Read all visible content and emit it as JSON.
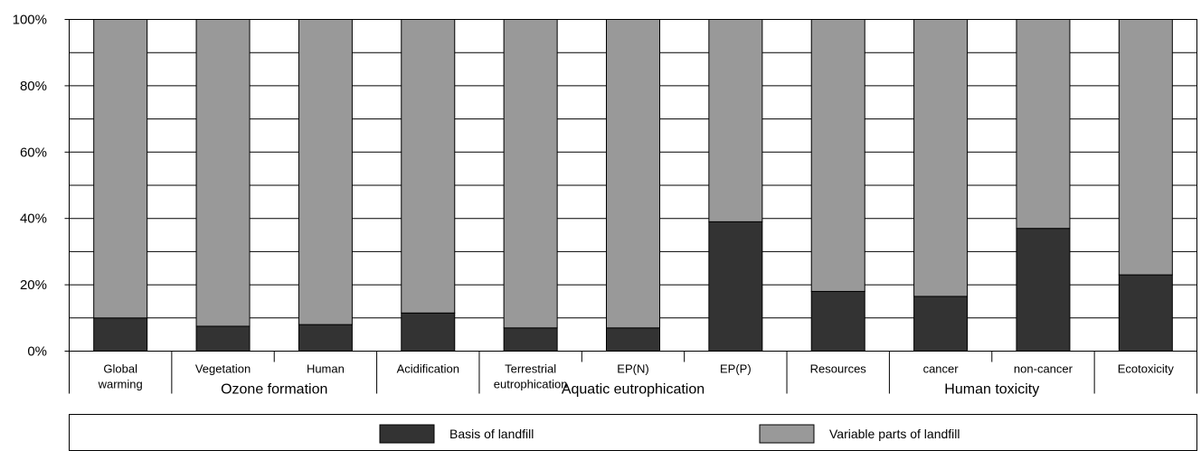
{
  "chart_data": {
    "type": "bar",
    "stacked": true,
    "normalized_percent": true,
    "ylim": [
      0,
      100
    ],
    "y_ticks": [
      "0%",
      "20%",
      "40%",
      "60%",
      "80%",
      "100%"
    ],
    "categories": [
      [
        "Global",
        "warming"
      ],
      [
        "Vegetation"
      ],
      [
        "Human"
      ],
      [
        "Acidification"
      ],
      [
        "Terrestrial",
        "eutrophication"
      ],
      [
        "EP(N)"
      ],
      [
        "EP(P)"
      ],
      [
        "Resources"
      ],
      [
        "cancer"
      ],
      [
        "non-cancer"
      ],
      [
        "Ecotoxicity"
      ]
    ],
    "groups": [
      {
        "label": "Ozone formation",
        "from": 1,
        "to": 2
      },
      {
        "label": "Aquatic eutrophication",
        "from": 4,
        "to": 6
      },
      {
        "label": "Human toxicity",
        "from": 8,
        "to": 9
      }
    ],
    "series": [
      {
        "name": "Basis of landfill",
        "color": "#333333",
        "values": [
          10,
          7.5,
          8,
          11.5,
          7,
          7,
          39,
          18,
          16.5,
          37,
          23
        ]
      },
      {
        "name": "Variable parts of landfill",
        "color": "#999999",
        "values": [
          90,
          92.5,
          92,
          88.5,
          93,
          93,
          61,
          82,
          83.5,
          63,
          77
        ]
      }
    ],
    "grid": true,
    "legend_position": "bottom"
  }
}
